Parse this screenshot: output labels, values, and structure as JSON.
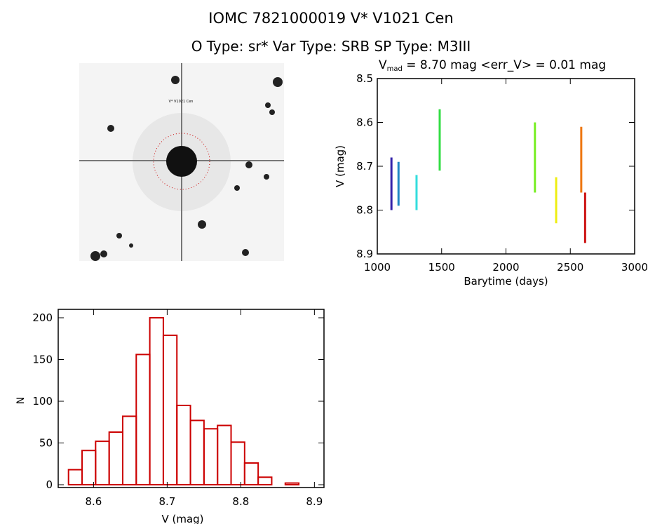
{
  "header": {
    "title": "IOMC 7821000019    V* V1021 Cen",
    "subtitle": "O Type: sr*  Var Type: SRB  SP Type: M3III"
  },
  "image_panel": {
    "target_label": "V* V1021 Cen",
    "marker_color": "#cc0000"
  },
  "chart_data": [
    {
      "type": "scatter",
      "title_parts": {
        "v": "V",
        "sub": "mad",
        "rest": " = 8.70 mag <err_V> = 0.01 mag"
      },
      "xlabel": "Barytime (days)",
      "ylabel": "V (mag)",
      "xlim": [
        1000,
        3000
      ],
      "ylim": [
        8.9,
        8.5
      ],
      "y_inverted": true,
      "xticks": [
        "1000",
        "1500",
        "2000",
        "2500",
        "3000"
      ],
      "yticks": [
        "8.5",
        "8.6",
        "8.7",
        "8.8",
        "8.9"
      ],
      "grid": false,
      "series": [
        {
          "x": 1110,
          "y_range": [
            8.68,
            8.8
          ],
          "color": "#3322aa"
        },
        {
          "x": 1165,
          "y_range": [
            8.69,
            8.79
          ],
          "color": "#1f86c4"
        },
        {
          "x": 1305,
          "y_range": [
            8.72,
            8.8
          ],
          "color": "#33dddd"
        },
        {
          "x": 1485,
          "y_range": [
            8.57,
            8.71
          ],
          "color": "#33dd44"
        },
        {
          "x": 2225,
          "y_range": [
            8.6,
            8.76
          ],
          "color": "#77ee22"
        },
        {
          "x": 2390,
          "y_range": [
            8.725,
            8.83
          ],
          "color": "#eeee11"
        },
        {
          "x": 2585,
          "y_range": [
            8.61,
            8.76
          ],
          "color": "#ee7711"
        },
        {
          "x": 2615,
          "y_range": [
            8.76,
            8.875
          ],
          "color": "#cc1111"
        }
      ]
    },
    {
      "type": "bar",
      "subtype": "histogram",
      "xlabel": "V (mag)",
      "ylabel": "N",
      "xlim": [
        8.552,
        8.913
      ],
      "ylim": [
        0,
        210
      ],
      "xticks": [
        "8.6",
        "8.7",
        "8.8",
        "8.9"
      ],
      "yticks": [
        "0",
        "50",
        "100",
        "150",
        "200"
      ],
      "bin_start": 8.566,
      "bin_width": 0.0184,
      "values": [
        18,
        41,
        52,
        63,
        82,
        156,
        200,
        179,
        95,
        77,
        67,
        71,
        51,
        26,
        9,
        0,
        2
      ],
      "color": "#cc0000",
      "grid": false
    }
  ]
}
